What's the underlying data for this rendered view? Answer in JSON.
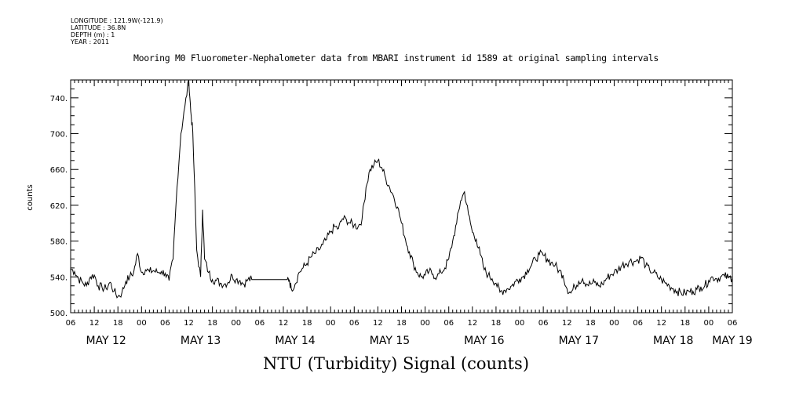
{
  "meta": {
    "longitude": "LONGITUDE : 121.9W(-121.9)",
    "latitude": "LATITUDE : 36.8N",
    "depth": "DEPTH (m) : 1",
    "year": "YEAR : 2011"
  },
  "chart_data": {
    "type": "line",
    "title": "Mooring M0 Fluorometer-Nephalometer data from MBARI instrument id 1589 at original sampling intervals",
    "xlabel": "NTU (Turbidity) Signal (counts)",
    "ylabel": "counts",
    "ylim": [
      500,
      760
    ],
    "yticks": [
      500,
      540,
      580,
      620,
      660,
      700,
      740
    ],
    "xlim_hours": [
      0,
      168
    ],
    "x_start": "2011-05-12 06:00",
    "hour_tick_labels": [
      "06",
      "12",
      "18",
      "00",
      "06",
      "12",
      "18",
      "00",
      "06",
      "12",
      "18",
      "00",
      "06",
      "12",
      "18",
      "00",
      "06",
      "12",
      "18",
      "00",
      "06",
      "12",
      "18",
      "00",
      "06",
      "12",
      "18",
      "00",
      "06"
    ],
    "day_labels": [
      {
        "label": "MAY 12",
        "hour": 9
      },
      {
        "label": "MAY 13",
        "hour": 33
      },
      {
        "label": "MAY 14",
        "hour": 57
      },
      {
        "label": "MAY 15",
        "hour": 81
      },
      {
        "label": "MAY 16",
        "hour": 105
      },
      {
        "label": "MAY 17",
        "hour": 129
      },
      {
        "label": "MAY 18",
        "hour": 153
      },
      {
        "label": "MAY 19",
        "hour": 168
      }
    ],
    "grid": false,
    "series": [
      {
        "name": "",
        "points": [
          [
            0,
            549
          ],
          [
            1,
            546
          ],
          [
            2,
            538
          ],
          [
            3,
            534
          ],
          [
            4,
            530
          ],
          [
            5,
            540
          ],
          [
            6,
            542
          ],
          [
            7,
            530
          ],
          [
            8,
            528
          ],
          [
            9,
            527
          ],
          [
            10,
            534
          ],
          [
            11,
            524
          ],
          [
            12,
            518
          ],
          [
            13,
            522
          ],
          [
            14,
            535
          ],
          [
            15,
            540
          ],
          [
            16,
            545
          ],
          [
            17,
            566
          ],
          [
            18,
            545
          ],
          [
            19,
            548
          ],
          [
            20,
            546
          ],
          [
            21,
            547
          ],
          [
            22,
            545
          ],
          [
            23,
            546
          ],
          [
            24,
            544
          ],
          [
            25,
            536
          ],
          [
            26,
            560
          ],
          [
            27,
            640
          ],
          [
            28,
            700
          ],
          [
            29,
            730
          ],
          [
            30,
            760
          ],
          [
            30.5,
            725
          ],
          [
            31,
            702
          ],
          [
            32,
            570
          ],
          [
            33,
            540
          ],
          [
            33.5,
            615
          ],
          [
            34,
            560
          ],
          [
            35,
            545
          ],
          [
            36,
            537
          ],
          [
            37,
            536
          ],
          [
            38,
            533
          ],
          [
            39,
            532
          ],
          [
            40,
            534
          ],
          [
            41,
            542
          ],
          [
            42,
            537
          ],
          [
            43,
            536
          ],
          [
            44,
            532
          ],
          [
            45,
            537
          ],
          [
            46,
            537
          ],
          [
            48,
            537
          ],
          [
            52,
            537
          ],
          [
            55,
            537
          ],
          [
            55.5,
            537
          ],
          [
            56,
            527
          ],
          [
            57,
            532
          ],
          [
            58,
            545
          ],
          [
            59,
            550
          ],
          [
            60,
            555
          ],
          [
            61,
            562
          ],
          [
            62,
            566
          ],
          [
            63,
            570
          ],
          [
            64,
            576
          ],
          [
            65,
            582
          ],
          [
            66,
            590
          ],
          [
            67,
            596
          ],
          [
            68,
            594
          ],
          [
            69,
            605
          ],
          [
            70,
            604
          ],
          [
            71,
            600
          ],
          [
            72,
            598
          ],
          [
            73,
            596
          ],
          [
            74,
            605
          ],
          [
            75,
            640
          ],
          [
            76,
            660
          ],
          [
            77,
            665
          ],
          [
            78,
            670
          ],
          [
            79,
            662
          ],
          [
            80,
            650
          ],
          [
            81,
            640
          ],
          [
            82,
            630
          ],
          [
            83,
            618
          ],
          [
            84,
            600
          ],
          [
            85,
            582
          ],
          [
            86,
            568
          ],
          [
            87,
            555
          ],
          [
            88,
            545
          ],
          [
            89,
            540
          ],
          [
            90,
            542
          ],
          [
            91,
            546
          ],
          [
            92,
            543
          ],
          [
            93,
            540
          ],
          [
            94,
            545
          ],
          [
            95,
            550
          ],
          [
            96,
            560
          ],
          [
            97,
            580
          ],
          [
            98,
            600
          ],
          [
            99,
            625
          ],
          [
            100,
            635
          ],
          [
            101,
            610
          ],
          [
            102,
            590
          ],
          [
            103,
            582
          ],
          [
            104,
            565
          ],
          [
            105,
            548
          ],
          [
            106,
            542
          ],
          [
            107,
            538
          ],
          [
            108,
            533
          ],
          [
            109,
            523
          ],
          [
            110,
            525
          ],
          [
            111,
            527
          ],
          [
            112,
            530
          ],
          [
            113,
            535
          ],
          [
            114,
            538
          ],
          [
            115,
            541
          ],
          [
            116,
            548
          ],
          [
            117,
            553
          ],
          [
            118,
            560
          ],
          [
            119,
            565
          ],
          [
            120,
            564
          ],
          [
            121,
            560
          ],
          [
            122,
            556
          ],
          [
            123,
            553
          ],
          [
            124,
            547
          ],
          [
            125,
            542
          ],
          [
            126,
            527
          ],
          [
            127,
            522
          ],
          [
            128,
            529
          ],
          [
            129,
            535
          ],
          [
            130,
            538
          ],
          [
            131,
            532
          ],
          [
            132,
            532
          ],
          [
            133,
            534
          ],
          [
            134,
            530
          ],
          [
            135,
            532
          ],
          [
            136,
            538
          ],
          [
            137,
            542
          ],
          [
            138,
            545
          ],
          [
            139,
            548
          ],
          [
            140,
            553
          ],
          [
            141,
            555
          ],
          [
            142,
            558
          ],
          [
            143,
            557
          ],
          [
            144,
            559
          ],
          [
            145,
            562
          ],
          [
            146,
            552
          ],
          [
            147,
            548
          ],
          [
            148,
            545
          ],
          [
            149,
            540
          ],
          [
            150,
            537
          ],
          [
            151,
            533
          ],
          [
            152,
            530
          ],
          [
            153,
            527
          ],
          [
            154,
            524
          ],
          [
            155,
            522
          ],
          [
            156,
            522
          ],
          [
            157,
            524
          ],
          [
            158,
            524
          ],
          [
            159,
            526
          ],
          [
            160,
            529
          ],
          [
            161,
            530
          ],
          [
            162,
            536
          ],
          [
            163,
            540
          ],
          [
            164,
            538
          ],
          [
            165,
            540
          ],
          [
            166,
            541
          ],
          [
            167,
            539
          ],
          [
            168,
            539
          ]
        ]
      }
    ]
  }
}
